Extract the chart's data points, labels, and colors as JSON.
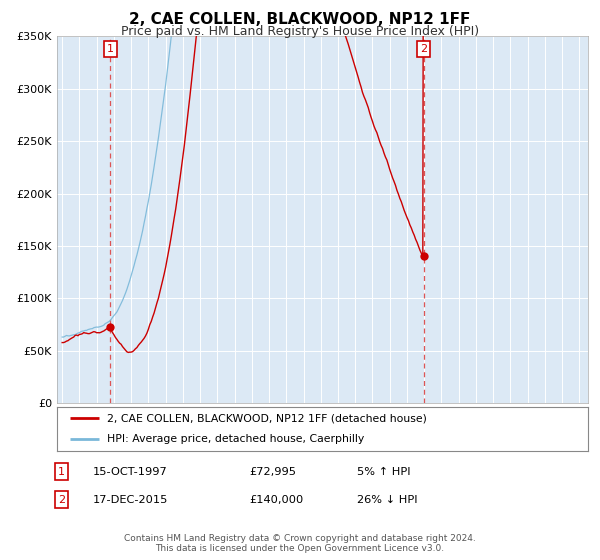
{
  "title": "2, CAE COLLEN, BLACKWOOD, NP12 1FF",
  "subtitle": "Price paid vs. HM Land Registry's House Price Index (HPI)",
  "background_color": "#ffffff",
  "plot_bg_color": "#dce9f5",
  "grid_color": "#ffffff",
  "ylim": [
    0,
    350000
  ],
  "yticks": [
    0,
    50000,
    100000,
    150000,
    200000,
    250000,
    300000,
    350000
  ],
  "ytick_labels": [
    "£0",
    "£50K",
    "£100K",
    "£150K",
    "£200K",
    "£250K",
    "£300K",
    "£350K"
  ],
  "xlim_start": 1994.7,
  "xlim_end": 2025.5,
  "sale1_x": 1997.79,
  "sale1_y": 72995,
  "sale2_x": 2015.96,
  "sale2_y": 140000,
  "legend_line1": "2, CAE COLLEN, BLACKWOOD, NP12 1FF (detached house)",
  "legend_line2": "HPI: Average price, detached house, Caerphilly",
  "table_row1": [
    "1",
    "15-OCT-1997",
    "£72,995",
    "5% ↑ HPI"
  ],
  "table_row2": [
    "2",
    "17-DEC-2015",
    "£140,000",
    "26% ↓ HPI"
  ],
  "footer1": "Contains HM Land Registry data © Crown copyright and database right 2024.",
  "footer2": "This data is licensed under the Open Government Licence v3.0.",
  "line_color_red": "#cc0000",
  "line_color_blue": "#7ab8d9",
  "vline_color": "#dd5555",
  "title_fontsize": 11,
  "subtitle_fontsize": 9
}
